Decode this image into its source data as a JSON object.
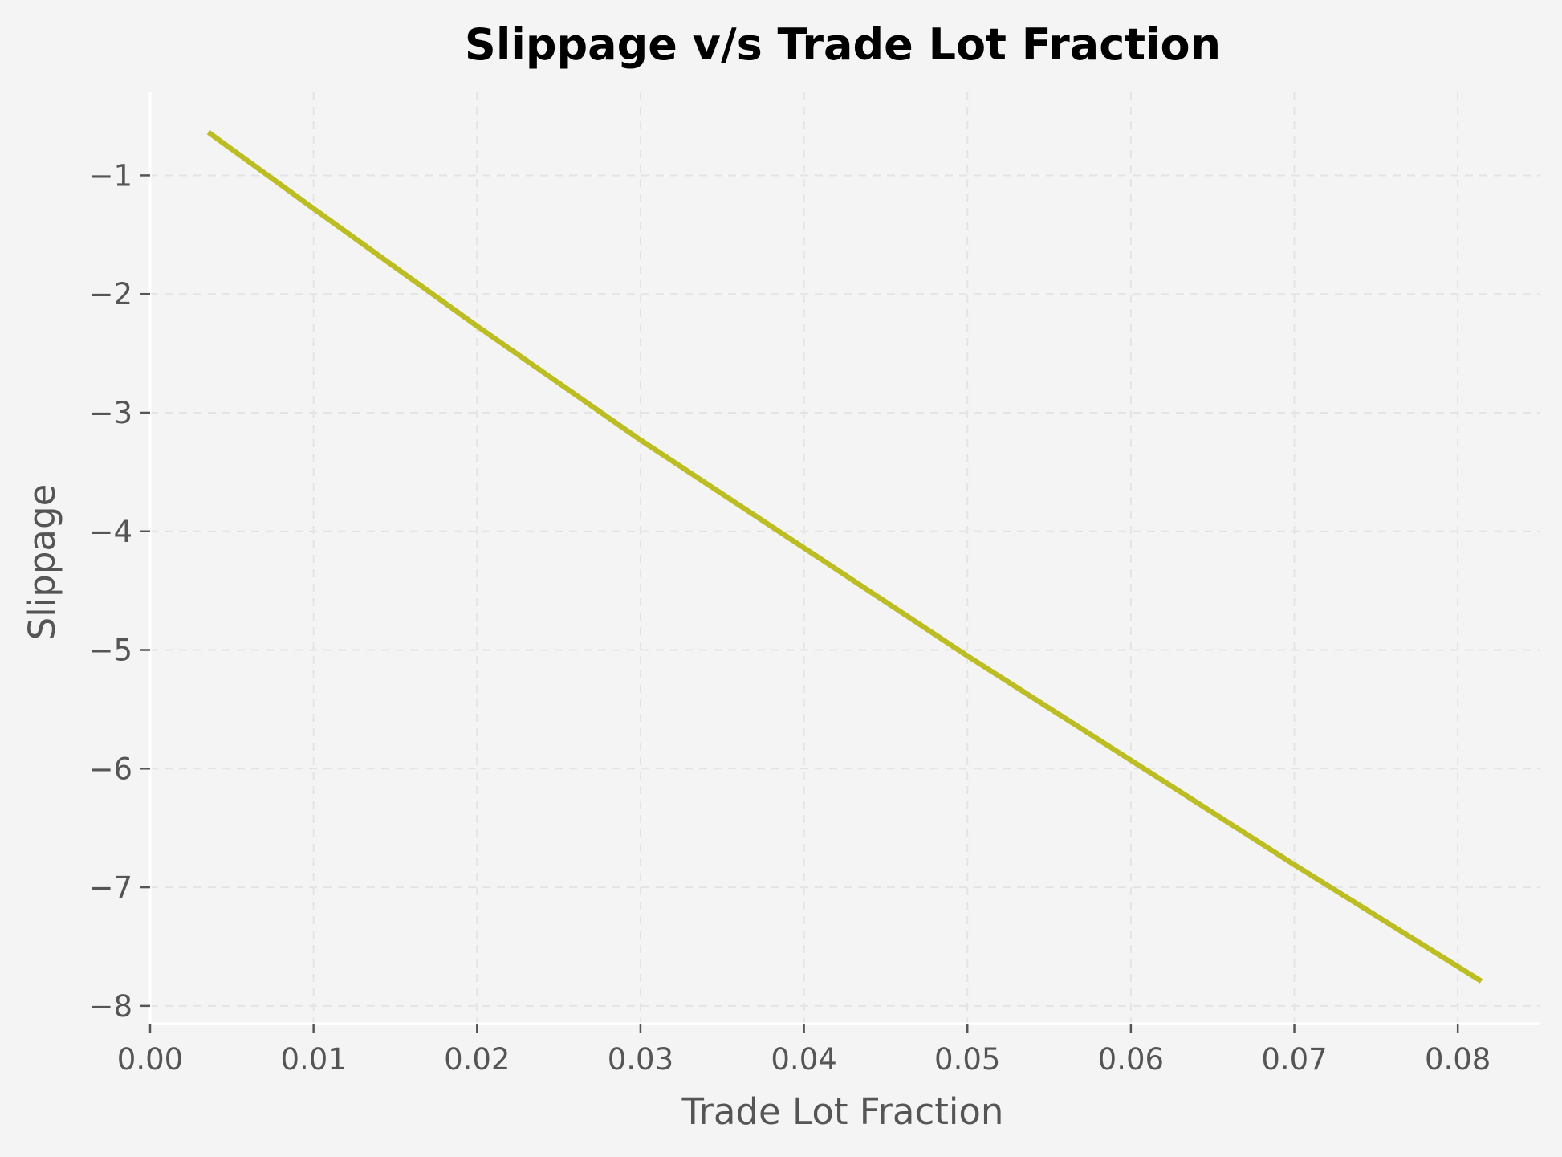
{
  "chart_data": {
    "type": "line",
    "title": "Slippage v/s Trade Lot Fraction",
    "xlabel": "Trade Lot Fraction",
    "ylabel": "Slippage",
    "xlim": [
      0.0,
      0.085
    ],
    "ylim": [
      -8.15,
      -0.3
    ],
    "xticks": [
      0.0,
      0.01,
      0.02,
      0.03,
      0.04,
      0.05,
      0.06,
      0.07,
      0.08
    ],
    "xtick_labels": [
      "0.00",
      "0.01",
      "0.02",
      "0.03",
      "0.04",
      "0.05",
      "0.06",
      "0.07",
      "0.08"
    ],
    "yticks": [
      -1,
      -2,
      -3,
      -4,
      -5,
      -6,
      -7,
      -8
    ],
    "ytick_labels": [
      "−1",
      "−2",
      "−3",
      "−4",
      "−5",
      "−6",
      "−7",
      "−8"
    ],
    "grid": true,
    "series": [
      {
        "color": "#bcbd22",
        "x": [
          0.0037,
          0.01,
          0.02,
          0.03,
          0.04,
          0.05,
          0.06,
          0.07,
          0.0813
        ],
        "y": [
          -0.65,
          -1.28,
          -2.27,
          -3.23,
          -4.14,
          -5.05,
          -5.93,
          -6.81,
          -7.78
        ]
      }
    ]
  }
}
